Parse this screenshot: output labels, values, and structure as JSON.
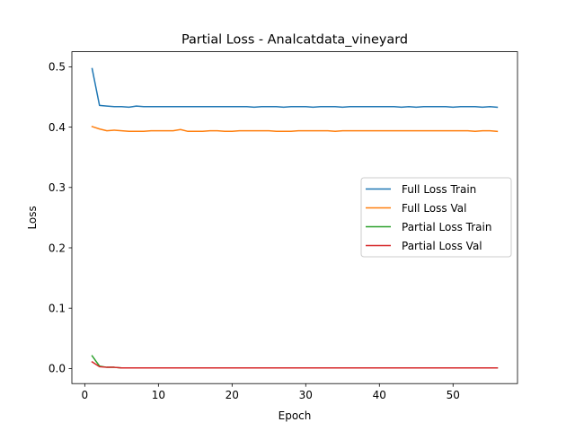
{
  "chart_data": {
    "type": "line",
    "title": "Partial Loss - Analcatdata_vineyard",
    "xlabel": "Epoch",
    "ylabel": "Loss",
    "xlim": [
      -1.75,
      58.75
    ],
    "ylim": [
      -0.025,
      0.525
    ],
    "xticks": [
      0,
      10,
      20,
      30,
      40,
      50
    ],
    "yticks": [
      0.0,
      0.1,
      0.2,
      0.3,
      0.4,
      0.5
    ],
    "ytick_labels": [
      "0.0",
      "0.1",
      "0.2",
      "0.3",
      "0.4",
      "0.5"
    ],
    "grid": false,
    "legend_position": "center-right",
    "x": [
      1,
      2,
      3,
      4,
      5,
      6,
      7,
      8,
      9,
      10,
      11,
      12,
      13,
      14,
      15,
      16,
      17,
      18,
      19,
      20,
      21,
      22,
      23,
      24,
      25,
      26,
      27,
      28,
      29,
      30,
      31,
      32,
      33,
      34,
      35,
      36,
      37,
      38,
      39,
      40,
      41,
      42,
      43,
      44,
      45,
      46,
      47,
      48,
      49,
      50,
      51,
      52,
      53,
      54,
      55,
      56
    ],
    "series": [
      {
        "name": "Full Loss Train",
        "color": "#1f77b4",
        "values": [
          0.497,
          0.436,
          0.435,
          0.434,
          0.434,
          0.433,
          0.435,
          0.434,
          0.434,
          0.434,
          0.434,
          0.434,
          0.434,
          0.434,
          0.434,
          0.434,
          0.434,
          0.434,
          0.434,
          0.434,
          0.434,
          0.434,
          0.433,
          0.434,
          0.434,
          0.434,
          0.433,
          0.434,
          0.434,
          0.434,
          0.433,
          0.434,
          0.434,
          0.434,
          0.433,
          0.434,
          0.434,
          0.434,
          0.434,
          0.434,
          0.434,
          0.434,
          0.433,
          0.434,
          0.433,
          0.434,
          0.434,
          0.434,
          0.434,
          0.433,
          0.434,
          0.434,
          0.434,
          0.433,
          0.434,
          0.433
        ]
      },
      {
        "name": "Full Loss Val",
        "color": "#ff7f0e",
        "values": [
          0.401,
          0.397,
          0.394,
          0.395,
          0.394,
          0.393,
          0.393,
          0.393,
          0.394,
          0.394,
          0.394,
          0.394,
          0.396,
          0.393,
          0.393,
          0.393,
          0.394,
          0.394,
          0.393,
          0.393,
          0.394,
          0.394,
          0.394,
          0.394,
          0.394,
          0.393,
          0.393,
          0.393,
          0.394,
          0.394,
          0.394,
          0.394,
          0.394,
          0.393,
          0.394,
          0.394,
          0.394,
          0.394,
          0.394,
          0.394,
          0.394,
          0.394,
          0.394,
          0.394,
          0.394,
          0.394,
          0.394,
          0.394,
          0.394,
          0.394,
          0.394,
          0.394,
          0.393,
          0.394,
          0.394,
          0.393
        ]
      },
      {
        "name": "Partial Loss Train",
        "color": "#2ca02c",
        "values": [
          0.021,
          0.004,
          0.002,
          0.002,
          0.001,
          0.001,
          0.001,
          0.001,
          0.001,
          0.001,
          0.001,
          0.001,
          0.001,
          0.001,
          0.001,
          0.001,
          0.001,
          0.001,
          0.001,
          0.001,
          0.001,
          0.001,
          0.001,
          0.001,
          0.001,
          0.001,
          0.001,
          0.001,
          0.001,
          0.001,
          0.001,
          0.001,
          0.001,
          0.001,
          0.001,
          0.001,
          0.001,
          0.001,
          0.001,
          0.001,
          0.001,
          0.001,
          0.001,
          0.001,
          0.001,
          0.001,
          0.001,
          0.001,
          0.001,
          0.001,
          0.001,
          0.001,
          0.001,
          0.001,
          0.001,
          0.001
        ]
      },
      {
        "name": "Partial Loss Val",
        "color": "#d62728",
        "values": [
          0.011,
          0.003,
          0.002,
          0.002,
          0.001,
          0.001,
          0.001,
          0.001,
          0.001,
          0.001,
          0.001,
          0.001,
          0.001,
          0.001,
          0.001,
          0.001,
          0.001,
          0.001,
          0.001,
          0.001,
          0.001,
          0.001,
          0.001,
          0.001,
          0.001,
          0.001,
          0.001,
          0.001,
          0.001,
          0.001,
          0.001,
          0.001,
          0.001,
          0.001,
          0.001,
          0.001,
          0.001,
          0.001,
          0.001,
          0.001,
          0.001,
          0.001,
          0.001,
          0.001,
          0.001,
          0.001,
          0.001,
          0.001,
          0.001,
          0.001,
          0.001,
          0.001,
          0.001,
          0.001,
          0.001,
          0.001
        ]
      }
    ]
  }
}
